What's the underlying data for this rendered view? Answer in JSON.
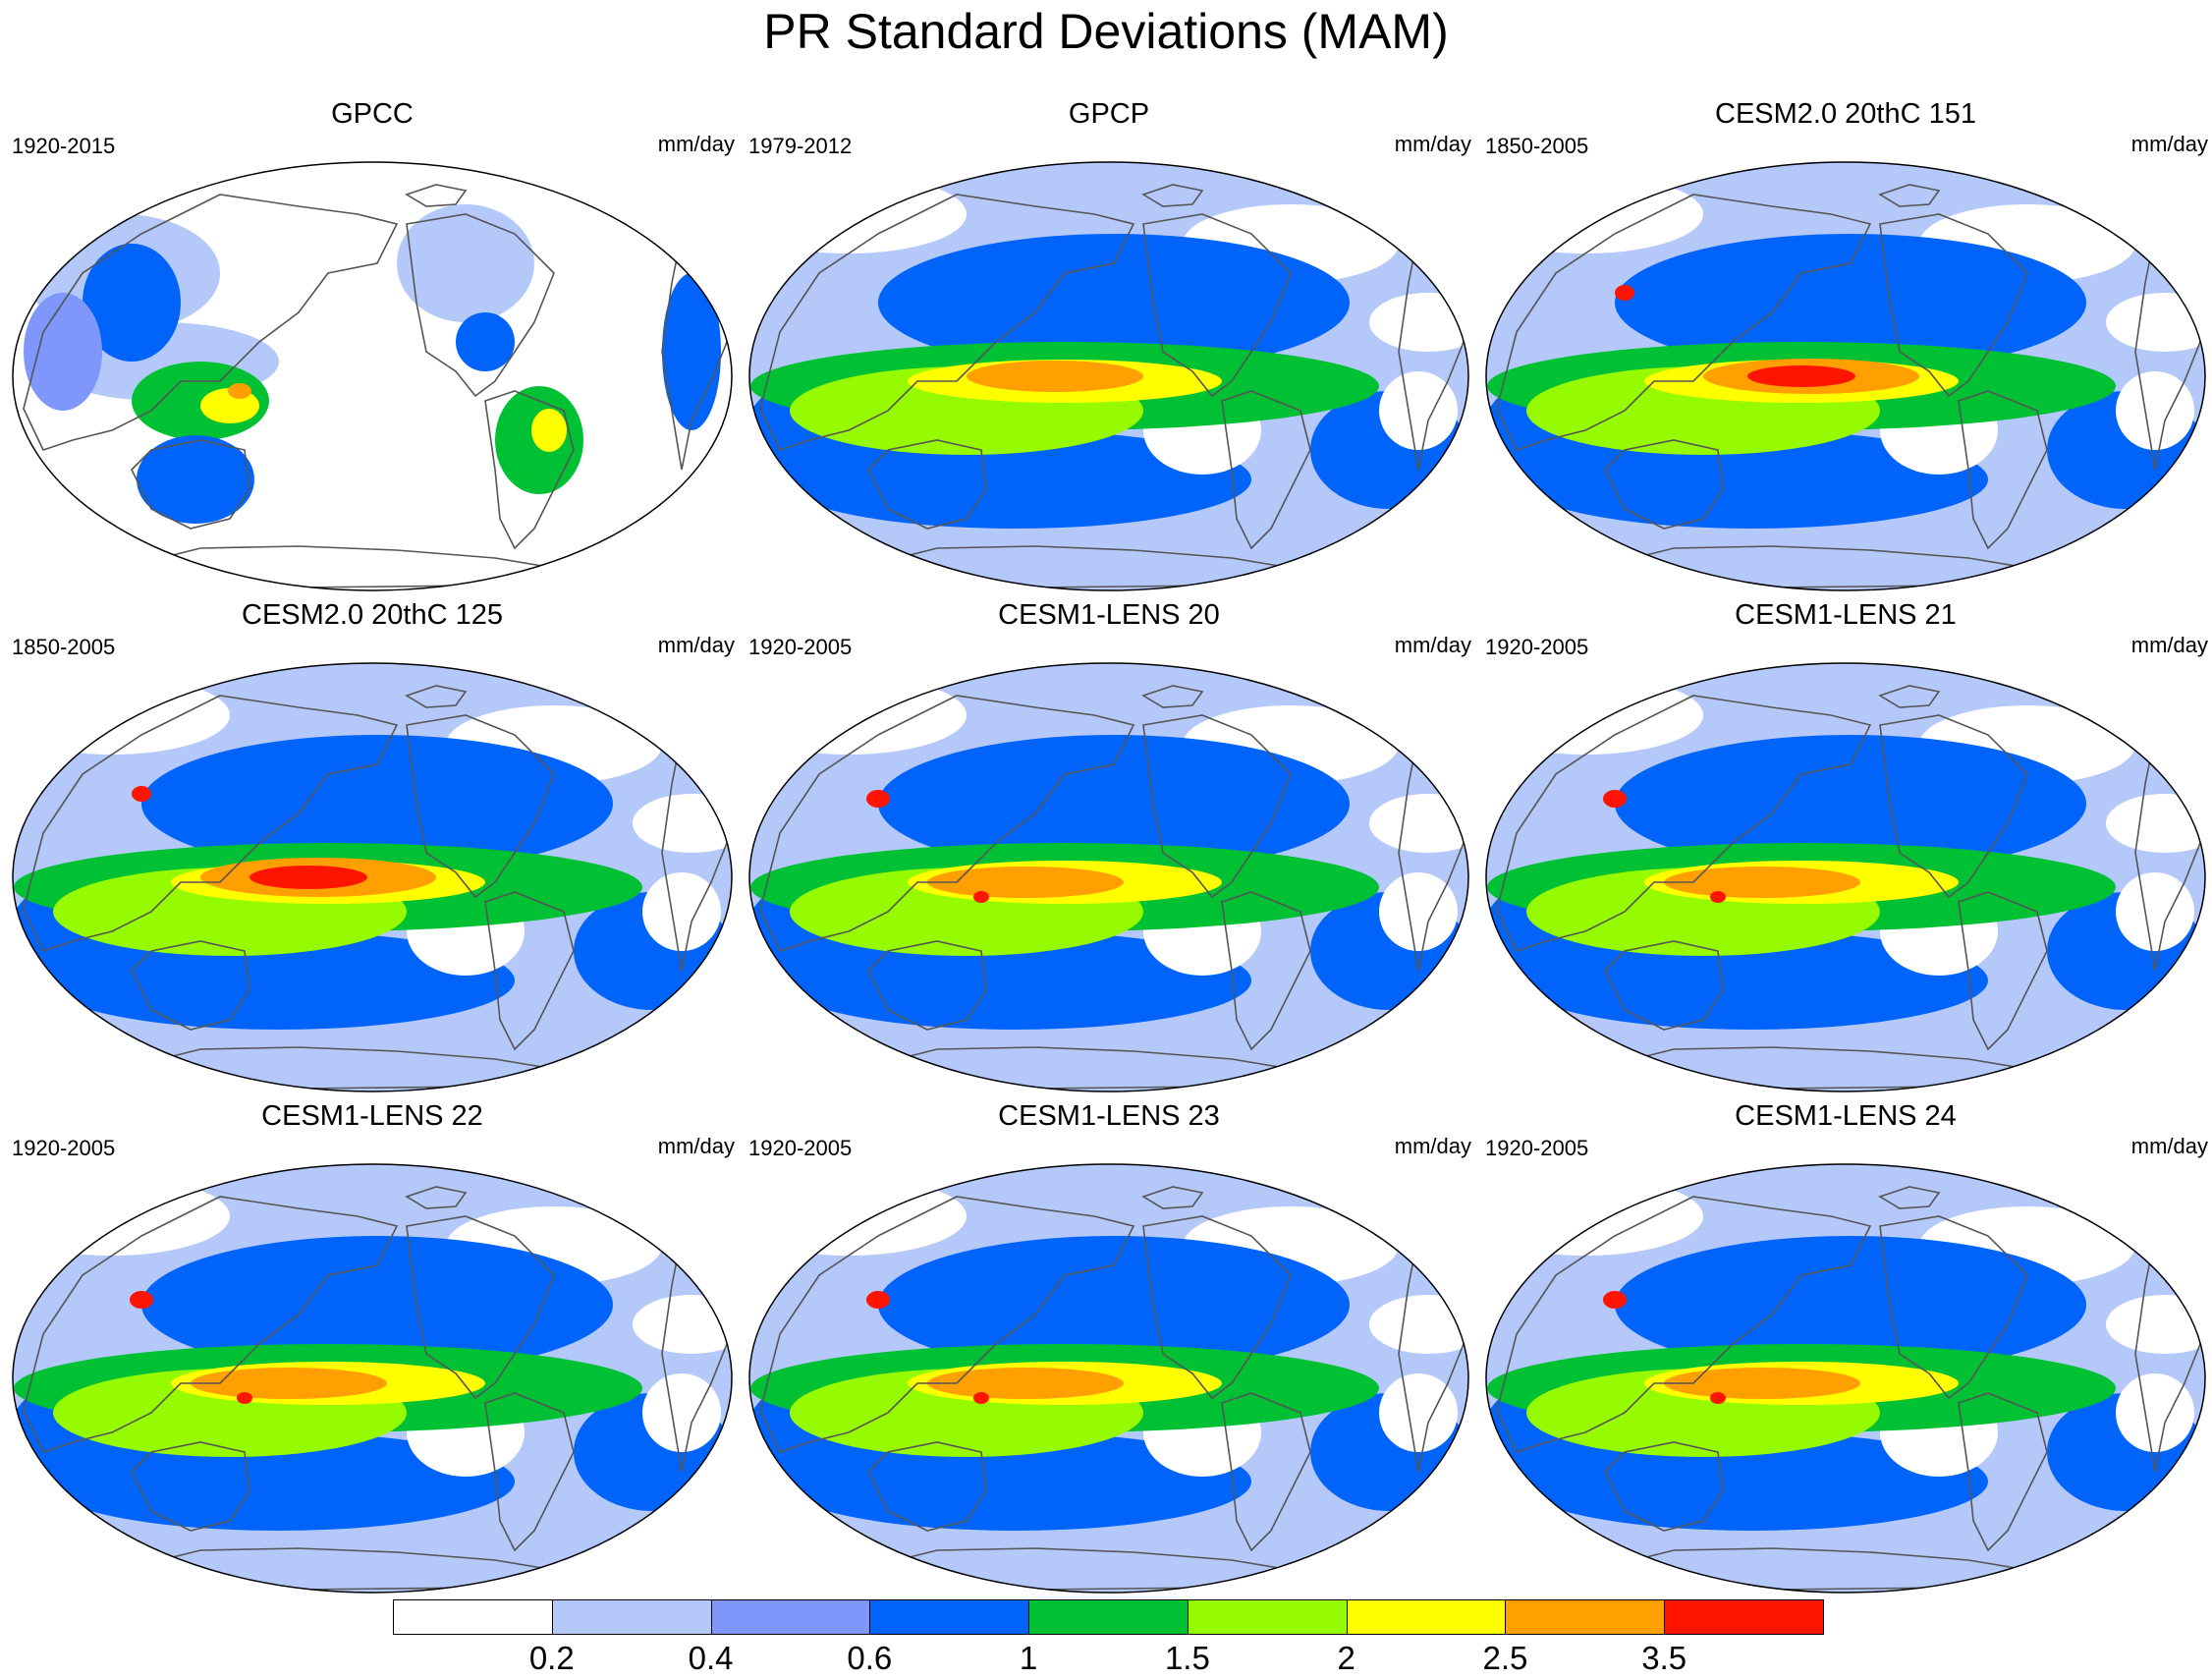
{
  "figure": {
    "title": "PR Standard Deviations (MAM)"
  },
  "panels": [
    {
      "id": "gpcc",
      "title": "GPCC",
      "years": "1920-2015",
      "units": "mm/day",
      "variant": "gpcc"
    },
    {
      "id": "gpcp",
      "title": "GPCP",
      "years": "1979-2012",
      "units": "mm/day",
      "variant": "gpcp"
    },
    {
      "id": "cesm2-151",
      "title": "CESM2.0 20thC 151",
      "years": "1850-2005",
      "units": "mm/day",
      "variant": "cesm2a"
    },
    {
      "id": "cesm2-125",
      "title": "CESM2.0 20thC 125",
      "years": "1850-2005",
      "units": "mm/day",
      "variant": "cesm2b"
    },
    {
      "id": "lens-20",
      "title": "CESM1-LENS 20",
      "years": "1920-2005",
      "units": "mm/day",
      "variant": "lens"
    },
    {
      "id": "lens-21",
      "title": "CESM1-LENS 21",
      "years": "1920-2005",
      "units": "mm/day",
      "variant": "lens"
    },
    {
      "id": "lens-22",
      "title": "CESM1-LENS 22",
      "years": "1920-2005",
      "units": "mm/day",
      "variant": "lens"
    },
    {
      "id": "lens-23",
      "title": "CESM1-LENS 23",
      "years": "1920-2005",
      "units": "mm/day",
      "variant": "lens"
    },
    {
      "id": "lens-24",
      "title": "CESM1-LENS 24",
      "years": "1920-2005",
      "units": "mm/day",
      "variant": "lens"
    }
  ],
  "colorbar": {
    "levels": [
      "0.2",
      "0.4",
      "0.6",
      "1",
      "1.5",
      "2",
      "2.5",
      "3.5"
    ],
    "colors": [
      "#ffffff",
      "#b4c8fa",
      "#7f96fa",
      "#0064fa",
      "#00c034",
      "#96fa00",
      "#ffff00",
      "#ffa000",
      "#ff1400"
    ]
  }
}
